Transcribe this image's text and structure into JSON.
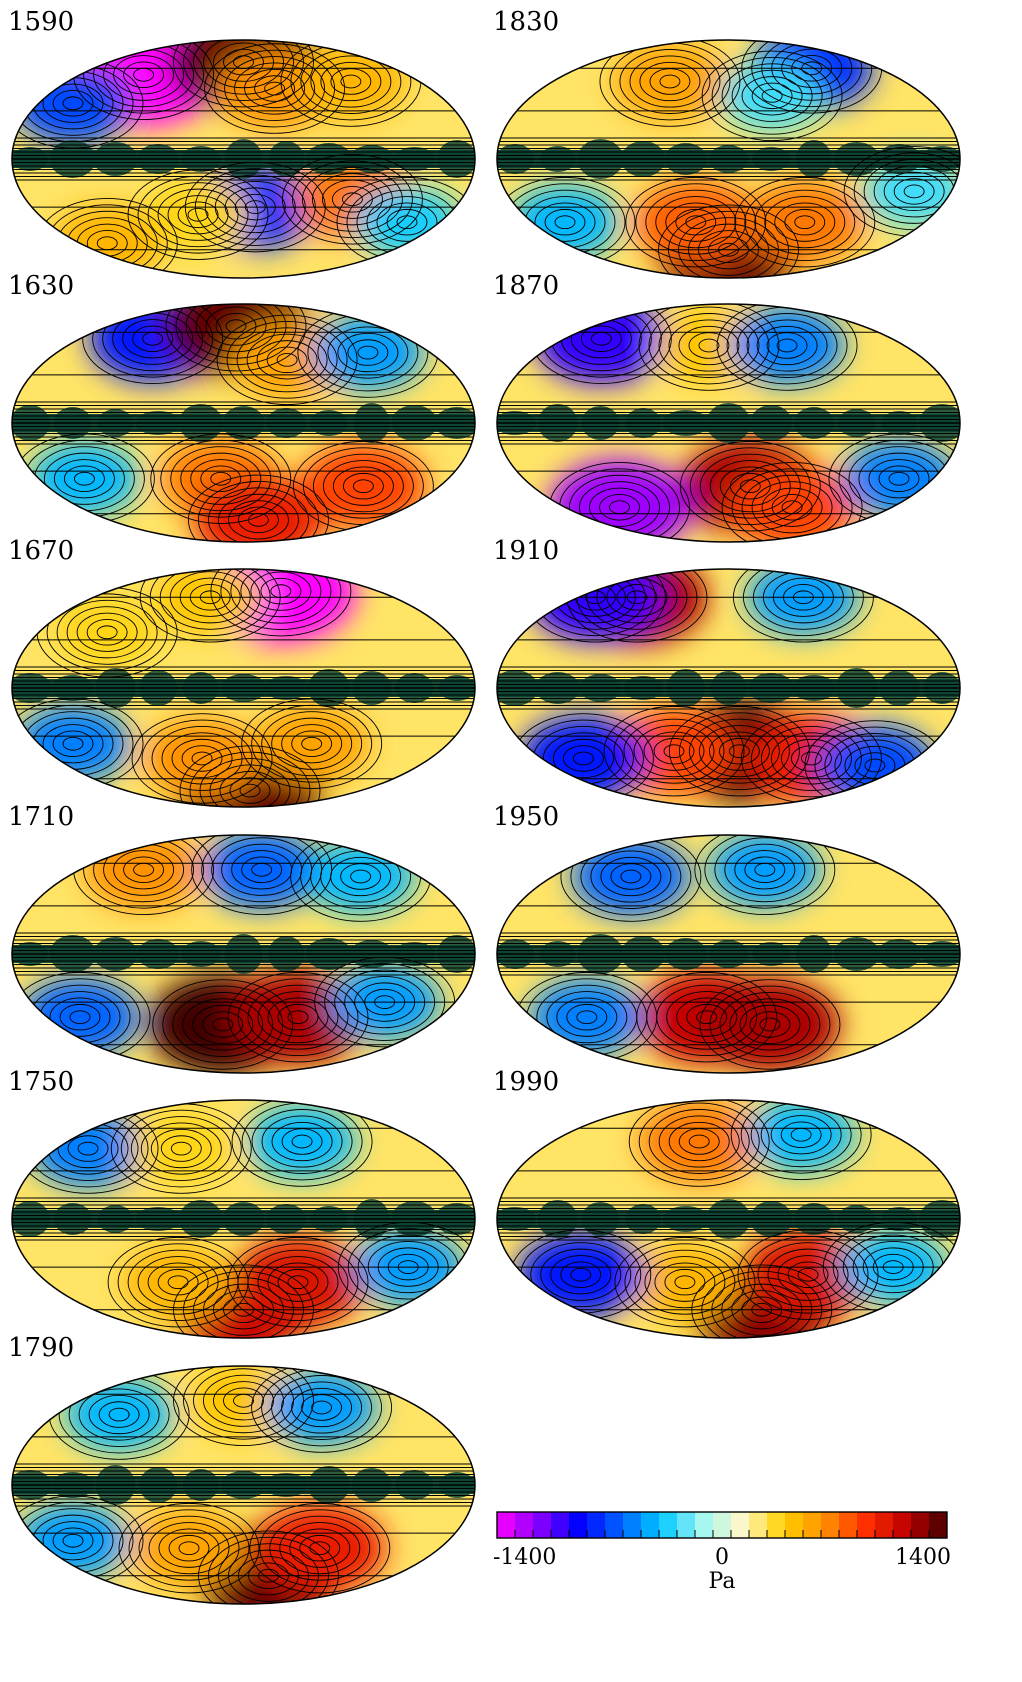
{
  "panels": [
    {
      "year": "1590",
      "blobs": [
        {
          "lon": -110,
          "lat": 55,
          "v": -1.0
        },
        {
          "lon": -150,
          "lat": 35,
          "v": -0.5
        },
        {
          "lon": 0,
          "lat": 65,
          "v": 0.95
        },
        {
          "lon": 30,
          "lat": 45,
          "v": 0.45
        },
        {
          "lon": 110,
          "lat": 50,
          "v": 0.35
        },
        {
          "lon": -150,
          "lat": -55,
          "v": 0.35
        },
        {
          "lon": 10,
          "lat": -30,
          "v": -0.55
        },
        {
          "lon": -40,
          "lat": -35,
          "v": 0.25
        },
        {
          "lon": 90,
          "lat": -25,
          "v": 0.5
        },
        {
          "lon": 150,
          "lat": -40,
          "v": -0.25
        }
      ]
    },
    {
      "year": "1830",
      "blobs": [
        {
          "lon": -60,
          "lat": 50,
          "v": 0.4
        },
        {
          "lon": 100,
          "lat": 60,
          "v": -0.55
        },
        {
          "lon": 40,
          "lat": 40,
          "v": -0.2
        },
        {
          "lon": 0,
          "lat": -60,
          "v": 0.95
        },
        {
          "lon": -30,
          "lat": -40,
          "v": 0.55
        },
        {
          "lon": 70,
          "lat": -40,
          "v": 0.5
        },
        {
          "lon": -150,
          "lat": -40,
          "v": -0.3
        },
        {
          "lon": 150,
          "lat": -20,
          "v": -0.2
        }
      ]
    },
    {
      "year": "1630",
      "blobs": [
        {
          "lon": -100,
          "lat": 55,
          "v": -0.6
        },
        {
          "lon": -10,
          "lat": 65,
          "v": 0.95
        },
        {
          "lon": 40,
          "lat": 40,
          "v": 0.4
        },
        {
          "lon": 120,
          "lat": 45,
          "v": -0.35
        },
        {
          "lon": -20,
          "lat": -35,
          "v": 0.5
        },
        {
          "lon": 20,
          "lat": -65,
          "v": 0.7
        },
        {
          "lon": 110,
          "lat": -40,
          "v": 0.6
        },
        {
          "lon": -140,
          "lat": -35,
          "v": -0.3
        }
      ]
    },
    {
      "year": "1870",
      "blobs": [
        {
          "lon": -140,
          "lat": 55,
          "v": -0.7
        },
        {
          "lon": -20,
          "lat": 50,
          "v": 0.3
        },
        {
          "lon": 60,
          "lat": 50,
          "v": -0.4
        },
        {
          "lon": 20,
          "lat": -40,
          "v": 0.85
        },
        {
          "lon": 70,
          "lat": -55,
          "v": 0.6
        },
        {
          "lon": -120,
          "lat": -55,
          "v": -0.85
        },
        {
          "lon": 150,
          "lat": -35,
          "v": -0.4
        }
      ]
    },
    {
      "year": "1670",
      "blobs": [
        {
          "lon": 50,
          "lat": 65,
          "v": -1.0
        },
        {
          "lon": -40,
          "lat": 60,
          "v": 0.3
        },
        {
          "lon": -120,
          "lat": 35,
          "v": 0.25
        },
        {
          "lon": 10,
          "lat": -70,
          "v": 0.95
        },
        {
          "lon": -40,
          "lat": -45,
          "v": 0.45
        },
        {
          "lon": 60,
          "lat": -35,
          "v": 0.4
        },
        {
          "lon": -150,
          "lat": -35,
          "v": -0.4
        }
      ]
    },
    {
      "year": "1910",
      "blobs": [
        {
          "lon": -110,
          "lat": 60,
          "v": 0.85
        },
        {
          "lon": -160,
          "lat": 60,
          "v": -0.7
        },
        {
          "lon": 90,
          "lat": 60,
          "v": -0.35
        },
        {
          "lon": 10,
          "lat": -40,
          "v": 1.0
        },
        {
          "lon": -50,
          "lat": -40,
          "v": 0.6
        },
        {
          "lon": 80,
          "lat": -45,
          "v": 0.7
        },
        {
          "lon": -140,
          "lat": -45,
          "v": -0.6
        },
        {
          "lon": 150,
          "lat": -50,
          "v": -0.5
        }
      ]
    },
    {
      "year": "1710",
      "blobs": [
        {
          "lon": -110,
          "lat": 55,
          "v": 0.45
        },
        {
          "lon": 20,
          "lat": 55,
          "v": -0.45
        },
        {
          "lon": 120,
          "lat": 50,
          "v": -0.3
        },
        {
          "lon": -20,
          "lat": -45,
          "v": 1.0
        },
        {
          "lon": 50,
          "lat": -40,
          "v": 0.85
        },
        {
          "lon": 120,
          "lat": -30,
          "v": -0.35
        },
        {
          "lon": -150,
          "lat": -40,
          "v": -0.45
        }
      ]
    },
    {
      "year": "1950",
      "blobs": [
        {
          "lon": -100,
          "lat": 50,
          "v": -0.45
        },
        {
          "lon": 40,
          "lat": 55,
          "v": -0.35
        },
        {
          "lon": -20,
          "lat": -40,
          "v": 0.8
        },
        {
          "lon": 40,
          "lat": -45,
          "v": 0.85
        },
        {
          "lon": -130,
          "lat": -40,
          "v": -0.4
        }
      ]
    },
    {
      "year": "1750",
      "blobs": [
        {
          "lon": -150,
          "lat": 45,
          "v": -0.4
        },
        {
          "lon": -60,
          "lat": 45,
          "v": 0.25
        },
        {
          "lon": 60,
          "lat": 50,
          "v": -0.3
        },
        {
          "lon": 0,
          "lat": -60,
          "v": 0.8
        },
        {
          "lon": 50,
          "lat": -40,
          "v": 0.75
        },
        {
          "lon": -60,
          "lat": -40,
          "v": 0.35
        },
        {
          "lon": 140,
          "lat": -30,
          "v": -0.35
        }
      ]
    },
    {
      "year": "1990",
      "blobs": [
        {
          "lon": -30,
          "lat": 50,
          "v": 0.5
        },
        {
          "lon": 80,
          "lat": 55,
          "v": -0.3
        },
        {
          "lon": 40,
          "lat": -60,
          "v": 0.9
        },
        {
          "lon": 70,
          "lat": -35,
          "v": 0.75
        },
        {
          "lon": -40,
          "lat": -40,
          "v": 0.35
        },
        {
          "lon": -130,
          "lat": -35,
          "v": -0.6
        },
        {
          "lon": 140,
          "lat": -30,
          "v": -0.3
        }
      ]
    },
    {
      "year": "1790",
      "blobs": [
        {
          "lon": -120,
          "lat": 45,
          "v": -0.3
        },
        {
          "lon": 0,
          "lat": 55,
          "v": 0.3
        },
        {
          "lon": 80,
          "lat": 50,
          "v": -0.35
        },
        {
          "lon": 30,
          "lat": -60,
          "v": 0.95
        },
        {
          "lon": 70,
          "lat": -40,
          "v": 0.7
        },
        {
          "lon": -50,
          "lat": -40,
          "v": 0.4
        },
        {
          "lon": -150,
          "lat": -35,
          "v": -0.35
        }
      ]
    }
  ],
  "colorbar": {
    "min_label": "-1400",
    "mid_label": "0",
    "max_label": "1400",
    "unit": "Pa",
    "min": -1400,
    "max": 1400,
    "n_bins": 25,
    "stops": [
      "#ff00ff",
      "#8a00ff",
      "#0000ff",
      "#0060ff",
      "#00c8ff",
      "#9ff7f2",
      "#fff7c8",
      "#ffd000",
      "#ff9000",
      "#ff3000",
      "#c00000",
      "#400000"
    ]
  },
  "colors": {
    "equatorial_band": "#0b4434",
    "contour": "#000000",
    "coastline": "#000000"
  }
}
